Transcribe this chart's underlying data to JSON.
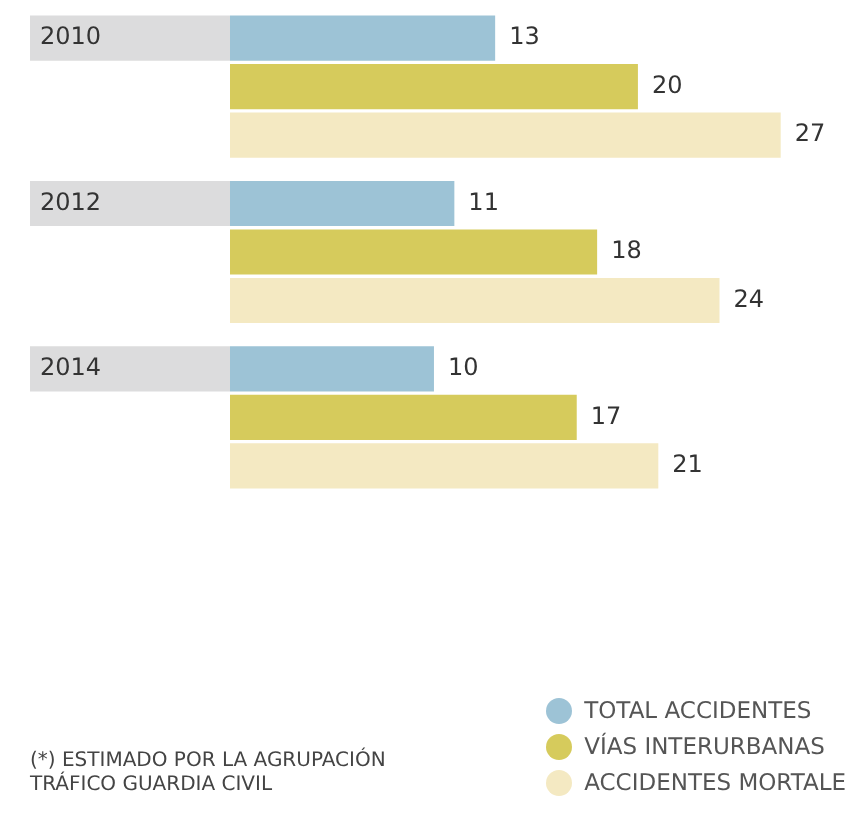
{
  "chart_data": {
    "type": "bar",
    "orientation": "horizontal",
    "categories": [
      "2010",
      "2012",
      "2014"
    ],
    "series": [
      {
        "name": "TOTAL ACCIDENTES",
        "color": "#9dc3d6",
        "values": [
          13,
          11,
          10
        ]
      },
      {
        "name": "VÍAS INTERURBANAS",
        "color": "#d6cb5c",
        "values": [
          20,
          18,
          17
        ]
      },
      {
        "name": "ACCIDENTES MORTALE",
        "color": "#f4e9c2",
        "values": [
          27,
          24,
          21
        ]
      }
    ],
    "data_labels": true,
    "legend": "bottom right",
    "annotations": [
      "(*) ESTIMADO POR LA AGRUPACIÓN TRÁFICO GUARDIA CIVIL"
    ]
  }
}
